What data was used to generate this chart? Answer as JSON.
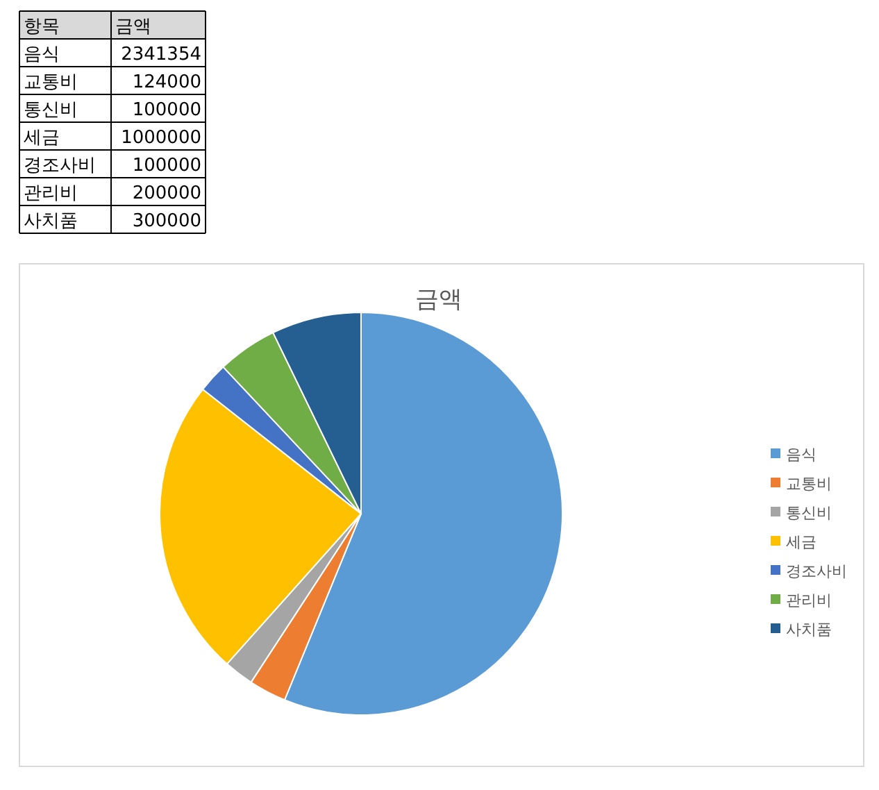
{
  "chart_data": [
    {
      "type": "other",
      "annotations": [
        "항목",
        "금액"
      ],
      "categories": [
        "음식",
        "교통비",
        "통신비",
        "세금",
        "경조사비",
        "관리비",
        "사치품"
      ],
      "values": [
        2341354,
        124000,
        100000,
        1000000,
        100000,
        200000,
        300000
      ],
      "data_labels": true
    },
    {
      "type": "pie",
      "title": "금액",
      "categories": [
        "음식",
        "교통비",
        "통신비",
        "세금",
        "경조사비",
        "관리비",
        "사치품"
      ],
      "values": [
        56.2,
        3.0,
        2.4,
        24.0,
        2.4,
        4.8,
        7.2
      ],
      "colors": [
        "#5b9bd5",
        "#ed7d31",
        "#a5a5a5",
        "#ffc000",
        "#4472c4",
        "#70ad47",
        "#255e91"
      ],
      "legend": "right"
    }
  ]
}
